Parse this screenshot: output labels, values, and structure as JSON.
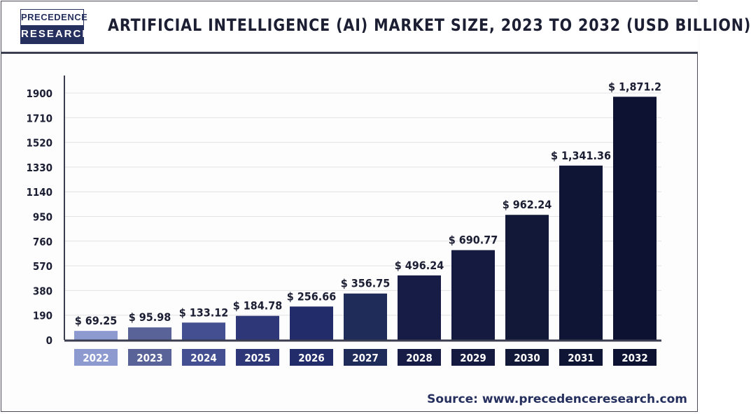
{
  "header": {
    "logo_top": "PRECEDENCE",
    "logo_bottom": "RESEARCH",
    "title": "ARTIFICIAL INTELLIGENCE (AI) MARKET SIZE, 2023 TO 2032 (USD BILLION)"
  },
  "source": "Source: www.precedenceresearch.com",
  "chart_data": {
    "type": "bar",
    "title": "ARTIFICIAL INTELLIGENCE (AI) MARKET SIZE, 2023 TO 2032 (USD BILLION)",
    "xlabel": "",
    "ylabel": "",
    "categories": [
      "2022",
      "2023",
      "2024",
      "2025",
      "2026",
      "2027",
      "2028",
      "2029",
      "2030",
      "2031",
      "2032"
    ],
    "values": [
      69.25,
      95.98,
      133.12,
      184.78,
      256.66,
      356.75,
      496.24,
      690.77,
      962.24,
      1341.36,
      1871.2
    ],
    "data_labels": [
      "$ 69.25",
      "$ 95.98",
      "$ 133.12",
      "$ 184.78",
      "$ 256.66",
      "$ 356.75",
      "$ 496.24",
      "$ 690.77",
      "$ 962.24",
      "$ 1,341.36",
      "$ 1,871.2"
    ],
    "colors": [
      "#8d9ad0",
      "#5a6398",
      "#434f90",
      "#2e3878",
      "#232c6a",
      "#1f2c5a",
      "#161c45",
      "#141a40",
      "#121838",
      "#0f1535",
      "#0d1233"
    ],
    "yticks": [
      0,
      190,
      380,
      570,
      760,
      950,
      1140,
      1330,
      1520,
      1710,
      1900
    ],
    "ylim": [
      0,
      1900
    ],
    "grid": true
  }
}
